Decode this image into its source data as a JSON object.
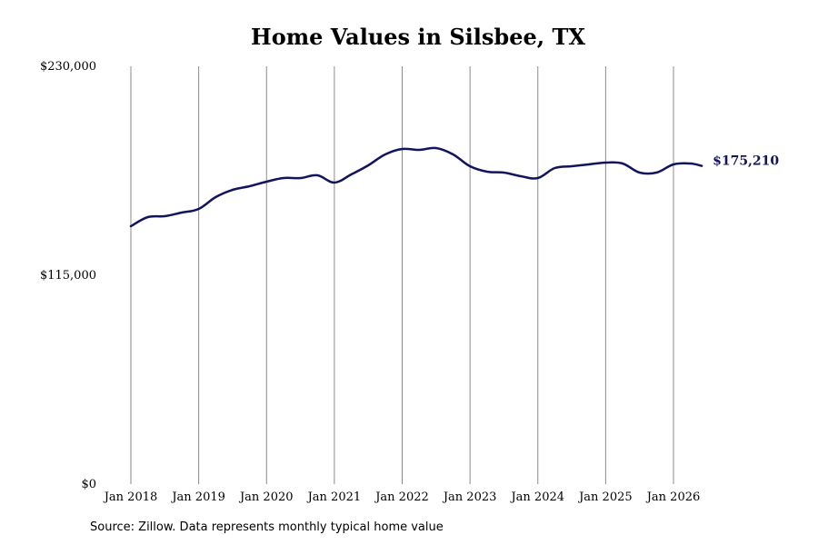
{
  "chart_data": {
    "type": "line",
    "title": "Home Values in Silsbee, TX",
    "source": "Source: Zillow. Data represents monthly typical home value",
    "xlabel": "",
    "ylabel": "",
    "ylim": [
      0,
      230000
    ],
    "y_ticks": [
      {
        "value": 0,
        "label": "$0"
      },
      {
        "value": 115000,
        "label": "$115,000"
      },
      {
        "value": 230000,
        "label": "$230,000"
      }
    ],
    "x_ticks": [
      {
        "value": "2018-01",
        "label": "Jan 2018"
      },
      {
        "value": "2019-01",
        "label": "Jan 2019"
      },
      {
        "value": "2020-01",
        "label": "Jan 2020"
      },
      {
        "value": "2021-01",
        "label": "Jan 2021"
      },
      {
        "value": "2022-01",
        "label": "Jan 2022"
      },
      {
        "value": "2023-01",
        "label": "Jan 2023"
      },
      {
        "value": "2024-01",
        "label": "Jan 2024"
      },
      {
        "value": "2025-01",
        "label": "Jan 2025"
      },
      {
        "value": "2026-01",
        "label": "Jan 2026"
      }
    ],
    "grid": "vertical",
    "end_label": "$175,210",
    "series": [
      {
        "color": "#12145e",
        "points": [
          {
            "x": "2018-01",
            "y": 142000
          },
          {
            "x": "2018-04",
            "y": 147000
          },
          {
            "x": "2018-07",
            "y": 147500
          },
          {
            "x": "2018-10",
            "y": 149500
          },
          {
            "x": "2019-01",
            "y": 151500
          },
          {
            "x": "2019-04",
            "y": 158000
          },
          {
            "x": "2019-07",
            "y": 162000
          },
          {
            "x": "2019-10",
            "y": 164000
          },
          {
            "x": "2020-01",
            "y": 166500
          },
          {
            "x": "2020-04",
            "y": 168500
          },
          {
            "x": "2020-07",
            "y": 168500
          },
          {
            "x": "2020-10",
            "y": 170000
          },
          {
            "x": "2021-01",
            "y": 166000
          },
          {
            "x": "2021-04",
            "y": 170500
          },
          {
            "x": "2021-07",
            "y": 175500
          },
          {
            "x": "2021-10",
            "y": 181500
          },
          {
            "x": "2022-01",
            "y": 184500
          },
          {
            "x": "2022-04",
            "y": 184000
          },
          {
            "x": "2022-07",
            "y": 185000
          },
          {
            "x": "2022-10",
            "y": 181500
          },
          {
            "x": "2023-01",
            "y": 175000
          },
          {
            "x": "2023-04",
            "y": 172000
          },
          {
            "x": "2023-07",
            "y": 171500
          },
          {
            "x": "2023-10",
            "y": 169500
          },
          {
            "x": "2024-01",
            "y": 168500
          },
          {
            "x": "2024-04",
            "y": 174000
          },
          {
            "x": "2024-07",
            "y": 175000
          },
          {
            "x": "2024-10",
            "y": 176000
          },
          {
            "x": "2025-01",
            "y": 177000
          },
          {
            "x": "2025-04",
            "y": 176500
          },
          {
            "x": "2025-07",
            "y": 171500
          },
          {
            "x": "2025-10",
            "y": 171500
          },
          {
            "x": "2026-01",
            "y": 176000
          },
          {
            "x": "2026-04",
            "y": 176500
          },
          {
            "x": "2026-06",
            "y": 175210
          }
        ]
      }
    ]
  }
}
